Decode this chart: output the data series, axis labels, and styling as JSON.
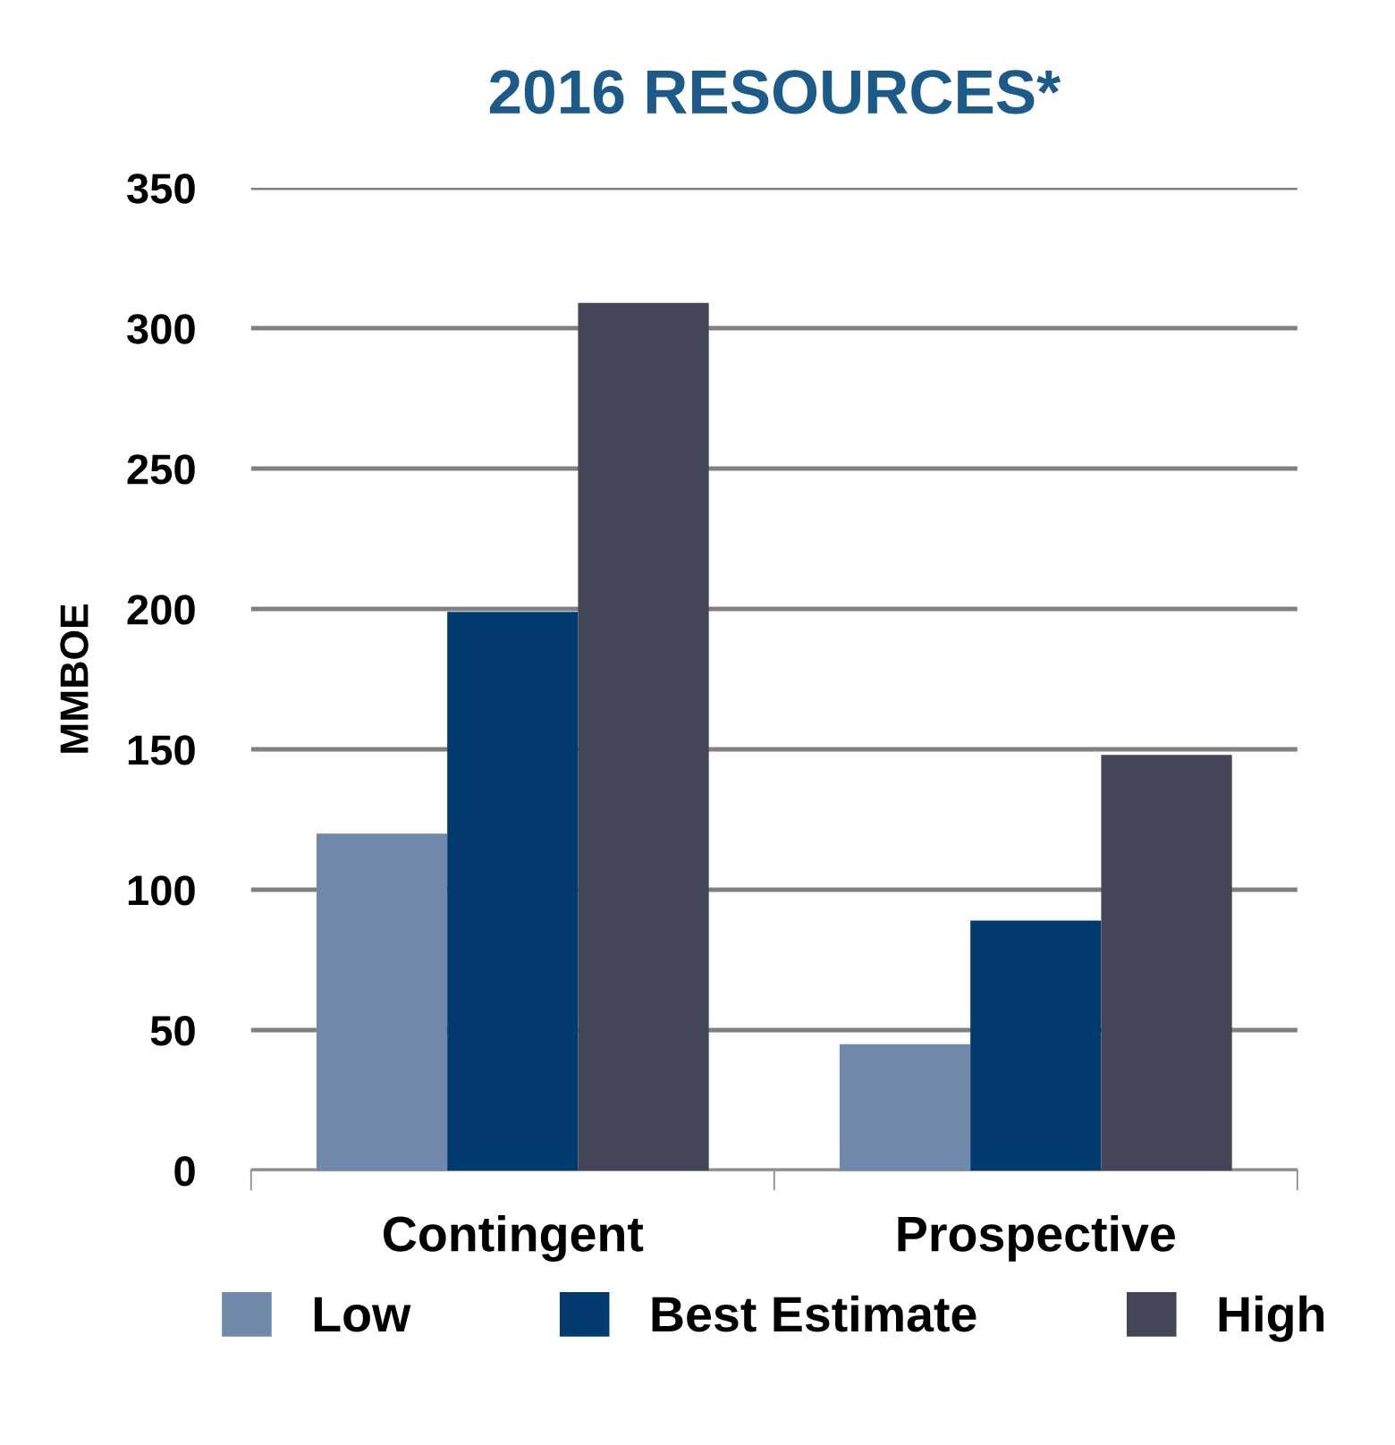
{
  "chart_data": {
    "type": "bar",
    "title": "2016 RESOURCES*",
    "ylabel": "MMBOE",
    "categories": [
      "Contingent",
      "Prospective"
    ],
    "series": [
      {
        "name": "Low",
        "color": "#7089ab",
        "values": [
          120,
          45
        ]
      },
      {
        "name": "Best Estimate",
        "color": "#003a6e",
        "values": [
          199,
          89
        ]
      },
      {
        "name": "High",
        "color": "#444658",
        "values": [
          309,
          148
        ]
      }
    ],
    "ylim": [
      0,
      350
    ],
    "yticks": [
      0,
      50,
      100,
      150,
      200,
      250,
      300,
      350
    ],
    "grid": "y",
    "legend": "bottom"
  }
}
